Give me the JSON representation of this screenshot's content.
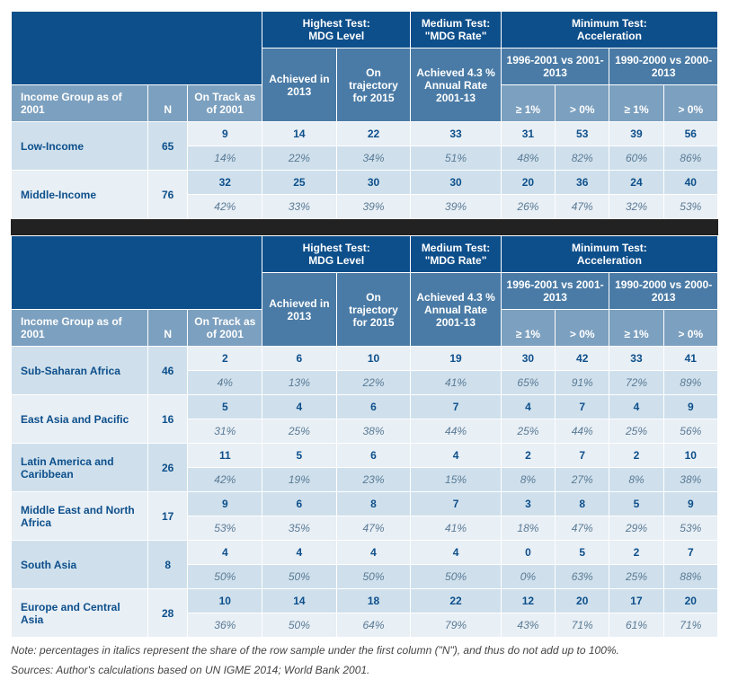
{
  "colors": {
    "header_dark": "#0d4f8b",
    "header_mid": "#4a7ba6",
    "header_light": "#7ca0bf",
    "row_even": "#e8eff5",
    "row_odd": "#cfe0ec",
    "value_text": "#0d4f8b",
    "pct_text": "#5a7a95",
    "gap_bg": "#222222",
    "body_bg": "#ffffff"
  },
  "typography": {
    "base_font_size_pt": 9,
    "font_family": "Arial"
  },
  "headers": {
    "group_label": "Income Group as of 2001",
    "n": "N",
    "on_track": "On Track as of 2001",
    "highest": "Highest Test:\nMDG Level",
    "achieved": "Achieved in 2013",
    "trajectory": "On trajectory for 2015",
    "medium": "Medium Test:\n\"MDG Rate\"",
    "medium_sub": "Achieved 4.3 % Annual Rate 2001-13",
    "minimum": "Minimum Test:\nAcceleration",
    "period_a": "1996-2001 vs 2001-2013",
    "period_b": "1990-2000 vs 2000-2013",
    "ge1": "≥ 1%",
    "gt0": "> 0%"
  },
  "table1": {
    "rows": [
      {
        "label": "Low-Income",
        "n": "65",
        "vals": [
          "9",
          "14",
          "22",
          "33",
          "31",
          "53",
          "39",
          "56"
        ],
        "pcts": [
          "14%",
          "22%",
          "34%",
          "51%",
          "48%",
          "82%",
          "60%",
          "86%"
        ]
      },
      {
        "label": "Middle-Income",
        "n": "76",
        "vals": [
          "32",
          "25",
          "30",
          "30",
          "20",
          "36",
          "24",
          "40"
        ],
        "pcts": [
          "42%",
          "33%",
          "39%",
          "39%",
          "26%",
          "47%",
          "32%",
          "53%"
        ]
      }
    ]
  },
  "table2": {
    "rows": [
      {
        "label": "Sub-Saharan Africa",
        "n": "46",
        "vals": [
          "2",
          "6",
          "10",
          "19",
          "30",
          "42",
          "33",
          "41"
        ],
        "pcts": [
          "4%",
          "13%",
          "22%",
          "41%",
          "65%",
          "91%",
          "72%",
          "89%"
        ]
      },
      {
        "label": "East Asia and Pacific",
        "n": "16",
        "vals": [
          "5",
          "4",
          "6",
          "7",
          "4",
          "7",
          "4",
          "9"
        ],
        "pcts": [
          "31%",
          "25%",
          "38%",
          "44%",
          "25%",
          "44%",
          "25%",
          "56%"
        ]
      },
      {
        "label": "Latin America and Caribbean",
        "n": "26",
        "vals": [
          "11",
          "5",
          "6",
          "4",
          "2",
          "7",
          "2",
          "10"
        ],
        "pcts": [
          "42%",
          "19%",
          "23%",
          "15%",
          "8%",
          "27%",
          "8%",
          "38%"
        ]
      },
      {
        "label": "Middle East and North Africa",
        "n": "17",
        "vals": [
          "9",
          "6",
          "8",
          "7",
          "3",
          "8",
          "5",
          "9"
        ],
        "pcts": [
          "53%",
          "35%",
          "47%",
          "41%",
          "18%",
          "47%",
          "29%",
          "53%"
        ]
      },
      {
        "label": "South Asia",
        "n": "8",
        "vals": [
          "4",
          "4",
          "4",
          "4",
          "0",
          "5",
          "2",
          "7"
        ],
        "pcts": [
          "50%",
          "50%",
          "50%",
          "50%",
          "0%",
          "63%",
          "25%",
          "88%"
        ]
      },
      {
        "label": "Europe and Central Asia",
        "n": "28",
        "vals": [
          "10",
          "14",
          "18",
          "22",
          "12",
          "20",
          "17",
          "20"
        ],
        "pcts": [
          "36%",
          "50%",
          "64%",
          "79%",
          "43%",
          "71%",
          "61%",
          "71%"
        ]
      }
    ]
  },
  "footnotes": {
    "line1": "Note: percentages in italics represent the share of the row sample under the first column (\"N\"), and thus do not add up to 100%.",
    "line2": "Sources: Author's calculations based on UN IGME 2014; World Bank 2001."
  }
}
